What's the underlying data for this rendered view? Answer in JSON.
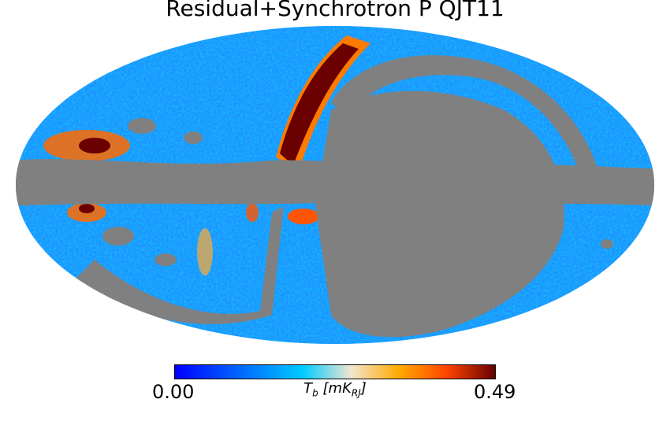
{
  "title": "Residual+Synchrotron P QJT11",
  "projection": "mollweide",
  "mask_color": "#808080",
  "colorbar": {
    "min_label": "0.00",
    "max_label": "0.49",
    "min": 0.0,
    "max": 0.49,
    "unit_label": "T_b [mK_RJ]",
    "colormap": [
      "#0000ff",
      "#0066ff",
      "#00ccff",
      "#f2e6d0",
      "#ffaa00",
      "#ff4400",
      "#660000"
    ]
  }
}
